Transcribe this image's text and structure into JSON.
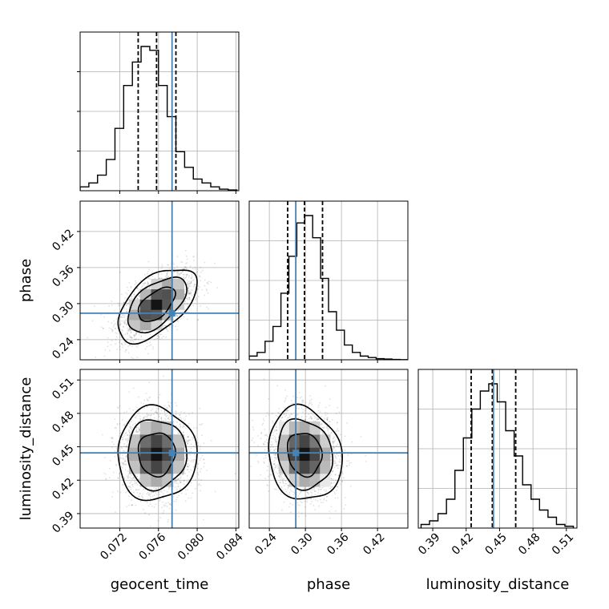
{
  "chart_data": {
    "type": "corner",
    "parameters": [
      "geocent_time",
      "phase",
      "luminosity_distance"
    ],
    "truths": {
      "geocent_time": 0.0774,
      "phase": 0.284,
      "luminosity_distance": 0.4445
    },
    "colors": {
      "truth": "#4682b4",
      "hist": "#000000",
      "quantile": "#000000",
      "grid": "#b0b0b0"
    },
    "grid": true,
    "axis_labels": {
      "x": [
        "geocent_time",
        "phase",
        "luminosity_distance"
      ],
      "y": [
        "",
        "phase",
        "luminosity_distance"
      ]
    },
    "ranges": {
      "geocent_time": [
        0.0679,
        0.0843
      ],
      "phase": [
        0.2065,
        0.4705
      ],
      "luminosity_distance": [
        0.377,
        0.5195
      ]
    },
    "ticks": {
      "geocent_time": [
        "0.072",
        "0.076",
        "0.080",
        "0.084"
      ],
      "phase": [
        "0.24",
        "0.30",
        "0.36",
        "0.42"
      ],
      "luminosity_distance": [
        "0.39",
        "0.42",
        "0.45",
        "0.48",
        "0.51"
      ]
    },
    "histograms": [
      {
        "parameter": "geocent_time",
        "bins": [
          0.0679,
          0.0688,
          0.0697,
          0.0706,
          0.0715,
          0.0724,
          0.0733,
          0.0742,
          0.0751,
          0.076,
          0.0769,
          0.0778,
          0.0787,
          0.0796,
          0.0805,
          0.0814,
          0.0823,
          0.0832,
          0.0841
        ],
        "counts": [
          1,
          2,
          4,
          8,
          16,
          27,
          33,
          37,
          36,
          27,
          19,
          10,
          6,
          3,
          2,
          1,
          0.4,
          0.2
        ],
        "quantiles": [
          0.0739,
          0.0758,
          0.0778
        ]
      },
      {
        "parameter": "phase",
        "bins": [
          0.2065,
          0.2197,
          0.2329,
          0.2461,
          0.2593,
          0.2725,
          0.2857,
          0.2989,
          0.3121,
          0.3253,
          0.3385,
          0.3517,
          0.3649,
          0.3781,
          0.3913,
          0.4045,
          0.4177,
          0.4309,
          0.4441,
          0.4573,
          0.4705
        ],
        "counts": [
          1,
          2,
          5,
          9,
          18,
          28,
          37,
          39,
          33,
          22,
          13,
          8,
          4,
          2,
          1,
          0.6,
          0.3,
          0.2,
          0.1,
          0.05
        ],
        "quantiles": [
          0.2705,
          0.2985,
          0.3285
        ]
      },
      {
        "parameter": "luminosity_distance",
        "bins": [
          0.3795,
          0.3871,
          0.3947,
          0.4023,
          0.4099,
          0.4175,
          0.4251,
          0.4327,
          0.4403,
          0.4479,
          0.4555,
          0.4631,
          0.4707,
          0.4783,
          0.4859,
          0.4935,
          0.5011,
          0.5087,
          0.5163
        ],
        "counts": [
          1,
          2,
          4,
          8,
          16,
          25,
          33,
          38,
          40,
          35,
          27,
          20,
          12,
          8,
          5,
          3,
          1,
          0.5
        ],
        "quantiles": [
          0.4245,
          0.4435,
          0.4645
        ]
      }
    ],
    "contours_2d": [
      {
        "x": "geocent_time",
        "y": "phase",
        "center": [
          0.0758,
          0.2985
        ],
        "sigma": [
          0.0019,
          0.0285
        ],
        "rho": 0.55
      },
      {
        "x": "geocent_time",
        "y": "luminosity_distance",
        "center": [
          0.0758,
          0.4435
        ],
        "sigma": [
          0.0019,
          0.0195
        ],
        "rho": 0.0
      },
      {
        "x": "phase",
        "y": "luminosity_distance",
        "center": [
          0.2985,
          0.4435
        ],
        "sigma": [
          0.0285,
          0.0195
        ],
        "rho": -0.12
      }
    ]
  }
}
